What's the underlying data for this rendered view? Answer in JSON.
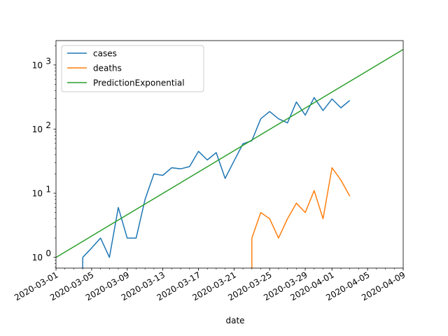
{
  "chart_data": {
    "type": "line",
    "title": "",
    "xlabel": "date",
    "ylabel": "",
    "yscale": "log",
    "ylim": [
      0.68,
      2400
    ],
    "xlim": [
      "2020-03-01",
      "2020-04-09"
    ],
    "grid": false,
    "legend_position": "top-left",
    "x_ticks": [
      "2020-03-01",
      "2020-03-05",
      "2020-03-09",
      "2020-03-13",
      "2020-03-17",
      "2020-03-21",
      "2020-03-25",
      "2020-03-29",
      "2020-04-01",
      "2020-04-05",
      "2020-04-09"
    ],
    "y_ticks": [
      {
        "value": 1,
        "base": "10",
        "exp": "0"
      },
      {
        "value": 10,
        "base": "10",
        "exp": "1"
      },
      {
        "value": 100,
        "base": "10",
        "exp": "2"
      },
      {
        "value": 1000,
        "base": "10",
        "exp": "3"
      }
    ],
    "series": [
      {
        "name": "cases",
        "color": "#1f77b4",
        "x": [
          "2020-03-04",
          "2020-03-05",
          "2020-03-06",
          "2020-03-07",
          "2020-03-08",
          "2020-03-09",
          "2020-03-10",
          "2020-03-11",
          "2020-03-12",
          "2020-03-13",
          "2020-03-14",
          "2020-03-15",
          "2020-03-16",
          "2020-03-17",
          "2020-03-18",
          "2020-03-19",
          "2020-03-20",
          "2020-03-21",
          "2020-03-22",
          "2020-03-23",
          "2020-03-24",
          "2020-03-25",
          "2020-03-26",
          "2020-03-27",
          "2020-03-28",
          "2020-03-29",
          "2020-03-30",
          "2020-03-31",
          "2020-04-01",
          "2020-04-02",
          "2020-04-03"
        ],
        "values": [
          1,
          1.4,
          2,
          1,
          6,
          2,
          2,
          8,
          20,
          19,
          25,
          24,
          26,
          45,
          33,
          43,
          17,
          32,
          59,
          66,
          145,
          188,
          145,
          125,
          265,
          165,
          310,
          195,
          295,
          215,
          280
        ],
        "drop_before": "2020-03-04"
      },
      {
        "name": "deaths",
        "color": "#ff7f0e",
        "x": [
          "2020-03-23",
          "2020-03-24",
          "2020-03-25",
          "2020-03-26",
          "2020-03-27",
          "2020-03-28",
          "2020-03-29",
          "2020-03-30",
          "2020-03-31",
          "2020-04-01",
          "2020-04-02",
          "2020-04-03"
        ],
        "values": [
          2,
          5,
          4,
          2,
          4,
          7,
          5,
          11,
          4,
          25,
          16,
          9
        ],
        "drop_before": "2020-03-23"
      },
      {
        "name": "PredictionExponential",
        "color": "#2ca02c",
        "x": [
          "2020-03-01",
          "2020-04-09"
        ],
        "values": [
          1,
          1750
        ]
      }
    ]
  }
}
